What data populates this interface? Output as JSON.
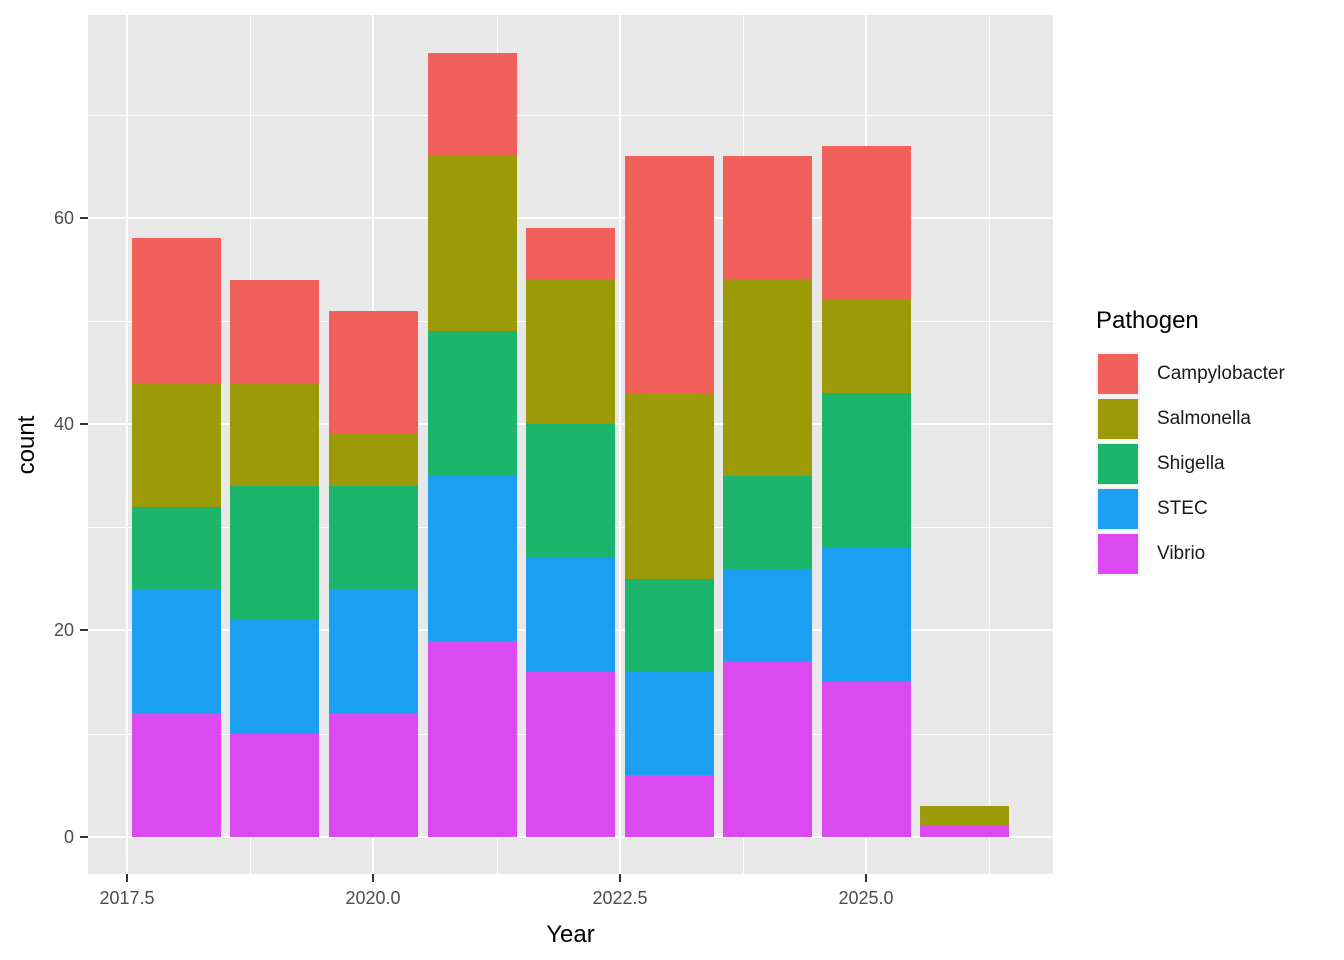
{
  "chart_data": {
    "type": "bar",
    "stacked": true,
    "xlabel": "Year",
    "ylabel": "count",
    "categories": [
      2018,
      2019,
      2020,
      2021,
      2022,
      2023,
      2024,
      2025,
      2026
    ],
    "series": [
      {
        "name": "Vibrio",
        "color": "#db49f0",
        "values": [
          12,
          10,
          12,
          19,
          16,
          6,
          17,
          15,
          1
        ]
      },
      {
        "name": "STEC",
        "color": "#1a9ff2",
        "values": [
          12,
          11,
          12,
          16,
          11,
          10,
          9,
          13,
          0
        ]
      },
      {
        "name": "Shigella",
        "color": "#1cb56c",
        "values": [
          8,
          13,
          10,
          14,
          13,
          9,
          9,
          15,
          0
        ]
      },
      {
        "name": "Salmonella",
        "color": "#9c9a06",
        "values": [
          12,
          10,
          5,
          17,
          14,
          18,
          19,
          9,
          2
        ]
      },
      {
        "name": "Campylobacter",
        "color": "#f2605c",
        "values": [
          14,
          10,
          12,
          10,
          5,
          23,
          12,
          15,
          0
        ]
      }
    ],
    "bar_totals": [
      58,
      54,
      51,
      76,
      59,
      66,
      66,
      67,
      3
    ],
    "legend": {
      "title": "Pathogen",
      "position": "right",
      "order": [
        "Campylobacter",
        "Salmonella",
        "Shigella",
        "STEC",
        "Vibrio"
      ]
    },
    "x_ticks": [
      2017.5,
      2020.0,
      2022.5,
      2025.0
    ],
    "x_tick_labels": [
      "2017.5",
      "2020.0",
      "2022.5",
      "2025.0"
    ],
    "x_minor_ticks": [
      2018.75,
      2021.25,
      2023.75,
      2026.25
    ],
    "y_ticks": [
      0,
      20,
      40,
      60
    ],
    "y_tick_labels": [
      "0",
      "20",
      "40",
      "60"
    ],
    "y_minor_ticks": [
      10,
      30,
      50,
      70
    ],
    "x_domain": [
      2017.105,
      2026.895
    ],
    "y_domain": [
      -3.62,
      79.67
    ],
    "bar_width": 0.9,
    "grid": true,
    "colors": {
      "panel_background": "#e8e8e8",
      "gridline": "#ffffff",
      "tick_mark": "#333333",
      "tick_text": "#4d4d4d",
      "axis_title_text": "#000000"
    }
  }
}
